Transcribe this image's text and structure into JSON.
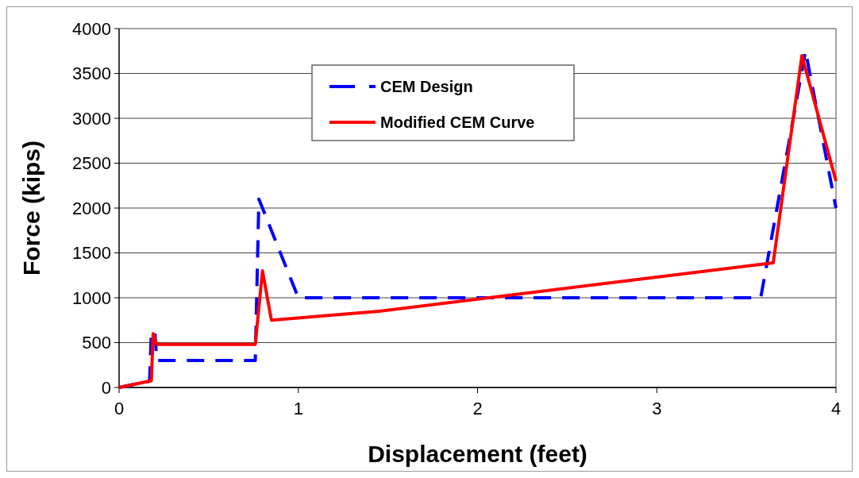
{
  "chart_data": {
    "type": "line",
    "xlabel": "Displacement (feet)",
    "ylabel": "Force (kips)",
    "xlim": [
      0,
      4
    ],
    "xticks": [
      0,
      1,
      2,
      3,
      4
    ],
    "ylim": [
      0,
      4000
    ],
    "yticks": [
      0,
      500,
      1000,
      1500,
      2000,
      2500,
      3000,
      3500,
      4000
    ],
    "grid": "y",
    "legend": "top",
    "series": [
      {
        "name": "CEM Design",
        "color": "#0000ff",
        "line_style": "dashed",
        "x": [
          0,
          0.17,
          0.18,
          0.2,
          0.21,
          0.76,
          0.78,
          1.0,
          3.58,
          3.83,
          4.0
        ],
        "values": [
          0,
          70,
          620,
          620,
          300,
          300,
          2100,
          1000,
          1000,
          3750,
          2000
        ]
      },
      {
        "name": "Modified CEM Curve",
        "color": "#ff0000",
        "line_style": "solid",
        "x": [
          0,
          0.18,
          0.19,
          0.21,
          0.76,
          0.8,
          0.85,
          1.45,
          3.65,
          3.81,
          4.0
        ],
        "values": [
          0,
          75,
          600,
          480,
          480,
          1300,
          750,
          850,
          1390,
          3700,
          2300
        ]
      }
    ]
  }
}
